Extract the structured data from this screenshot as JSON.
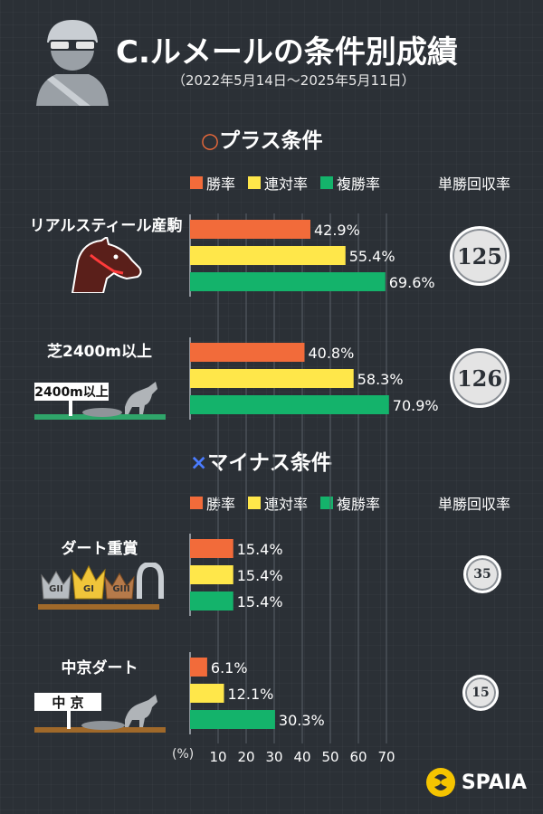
{
  "header": {
    "title": "C.ルメールの条件別成績",
    "subtitle": "（2022年5月14日〜2025年5月11日）"
  },
  "sections": {
    "plus": {
      "mark": "○",
      "label": "プラス条件"
    },
    "minus": {
      "mark": "×",
      "label": "マイナス条件"
    }
  },
  "legend": {
    "win": "勝率",
    "place2": "連対率",
    "place3": "複勝率",
    "roi": "単勝回収率"
  },
  "colors": {
    "win": "#f26b3a",
    "place2": "#ffe74a",
    "place3": "#14b36b"
  },
  "icons": {
    "header": "jockey-helmet-icon",
    "cond1": "horse-head-icon",
    "cond2": "turf-course-sign-icon",
    "cond3": "crown-grade-horseshoe-icon",
    "cond4": "dirt-course-sign-icon"
  },
  "sign_labels": {
    "cond2": "2400m以上",
    "cond4": "中 京"
  },
  "crown_labels": [
    "GII",
    "GI",
    "GIII"
  ],
  "axis": {
    "unit": "(%)",
    "ticks": [
      10,
      20,
      30,
      40,
      50,
      60,
      70
    ]
  },
  "chart_data": {
    "type": "bar",
    "orientation": "horizontal",
    "xlim": [
      0,
      70
    ],
    "series_names": [
      "勝率",
      "連対率",
      "複勝率"
    ],
    "groups": [
      {
        "name": "リアルスティール産駒",
        "section": "プラス条件",
        "values": [
          42.9,
          55.4,
          69.6
        ],
        "labels": [
          "42.9%",
          "55.4%",
          "69.6%"
        ],
        "roi": "125"
      },
      {
        "name": "芝2400m以上",
        "section": "プラス条件",
        "values": [
          40.8,
          58.3,
          70.9
        ],
        "labels": [
          "40.8%",
          "58.3%",
          "70.9%"
        ],
        "roi": "126"
      },
      {
        "name": "ダート重賞",
        "section": "マイナス条件",
        "values": [
          15.4,
          15.4,
          15.4
        ],
        "labels": [
          "15.4%",
          "15.4%",
          "15.4%"
        ],
        "roi": "35"
      },
      {
        "name": "中京ダート",
        "section": "マイナス条件",
        "values": [
          6.1,
          12.1,
          30.3
        ],
        "labels": [
          "6.1%",
          "12.1%",
          "30.3%"
        ],
        "roi": "15"
      }
    ]
  },
  "brand": {
    "name": "SPAIA"
  }
}
